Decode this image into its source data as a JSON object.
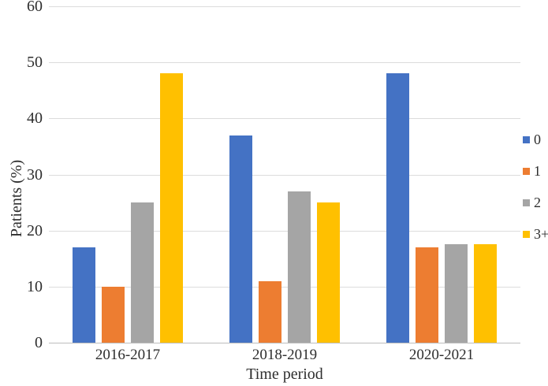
{
  "chart_data": {
    "type": "bar",
    "title": "",
    "xlabel": "Time period",
    "ylabel": "Patients (%)",
    "categories": [
      "2016-2017",
      "2018-2019",
      "2020-2021"
    ],
    "series": [
      {
        "name": "0",
        "color": "#4472C4",
        "values": [
          17,
          37,
          48
        ]
      },
      {
        "name": "1",
        "color": "#ED7D31",
        "values": [
          10,
          11,
          17
        ]
      },
      {
        "name": "2",
        "color": "#A5A5A5",
        "values": [
          25,
          27,
          17.5
        ]
      },
      {
        "name": "3+",
        "color": "#FFC000",
        "values": [
          48,
          25,
          17.5
        ]
      }
    ],
    "ylim": [
      0,
      60
    ],
    "ytick_step": 10,
    "yticks": [
      "0",
      "10",
      "20",
      "30",
      "40",
      "50",
      "60"
    ],
    "grid": true,
    "legend_position": "right",
    "gridline_color": "#dcdcdc",
    "axis_line_color": "#bdbdbd",
    "text_color": "#2e2e2e",
    "background_color": "#ffffff"
  }
}
